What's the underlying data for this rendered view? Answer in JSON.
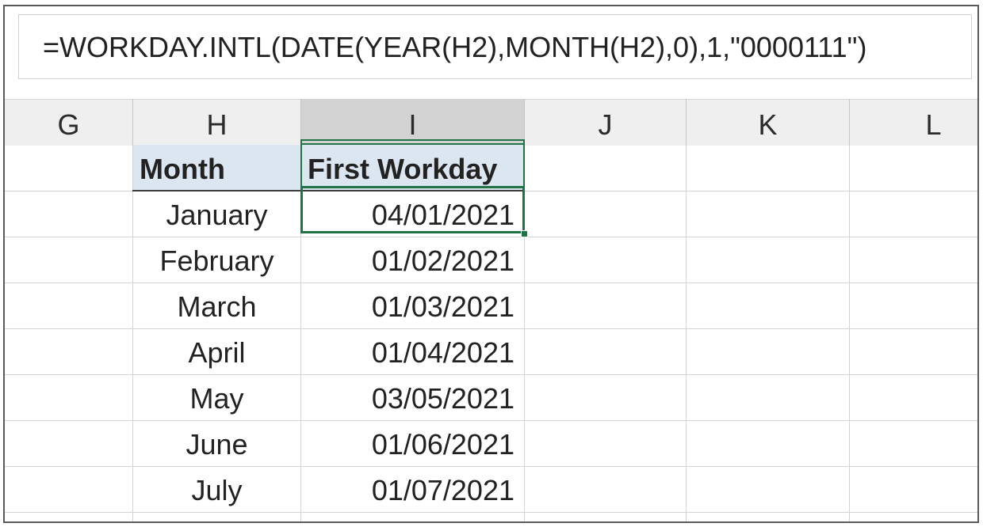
{
  "formula_bar": {
    "formula": "=WORKDAY.INTL(DATE(YEAR(H2),MONTH(H2),0),1,\"0000111\")"
  },
  "column_headers": [
    "G",
    "H",
    "I",
    "J",
    "K",
    "L"
  ],
  "selected_column": "I",
  "selected_cell": "I2",
  "table": {
    "headers": {
      "month": "Month",
      "first_workday": "First Workday"
    },
    "rows": [
      {
        "month": "January",
        "first_workday": "04/01/2021"
      },
      {
        "month": "February",
        "first_workday": "01/02/2021"
      },
      {
        "month": "March",
        "first_workday": "01/03/2021"
      },
      {
        "month": "April",
        "first_workday": "01/04/2021"
      },
      {
        "month": "May",
        "first_workday": "03/05/2021"
      },
      {
        "month": "June",
        "first_workday": "01/06/2021"
      },
      {
        "month": "July",
        "first_workday": "01/07/2021"
      }
    ]
  },
  "colors": {
    "selection": "#217346",
    "header_fill": "#dce6f1",
    "column_header_bg": "#efefef"
  }
}
